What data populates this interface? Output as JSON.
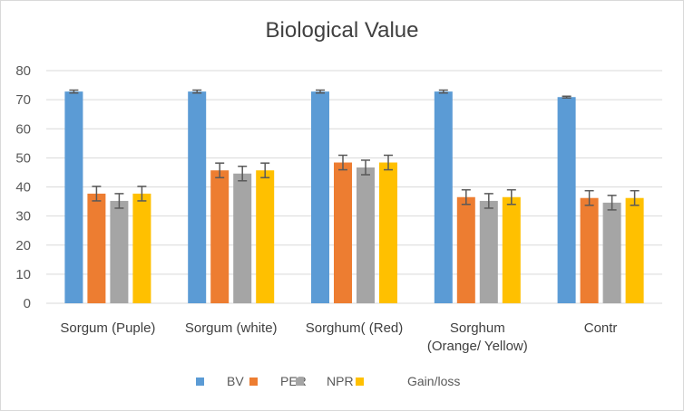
{
  "chart_data": {
    "type": "bar",
    "title": "Biological Value",
    "xlabel": "",
    "ylabel": "",
    "ylim": [
      0,
      80
    ],
    "yticks": [
      0,
      10,
      20,
      30,
      40,
      50,
      60,
      70,
      80
    ],
    "grid": true,
    "legend_position": "bottom",
    "categories": [
      [
        "Sorgum (Puple)"
      ],
      [
        "Sorgum (white)"
      ],
      [
        "Sorghum( (Red)"
      ],
      [
        "Sorghum",
        "(Orange/ Yellow)"
      ],
      [
        "Contr"
      ]
    ],
    "series": [
      {
        "name": "BV",
        "color": "#5b9bd5",
        "values": [
          72.8,
          72.8,
          72.8,
          72.8,
          70.9
        ],
        "errors": [
          0.5,
          0.5,
          0.5,
          0.5,
          0.3
        ]
      },
      {
        "name": "PER",
        "color": "#ed7d31",
        "values": [
          37.7,
          45.7,
          48.4,
          36.5,
          36.2
        ],
        "errors": [
          2.5,
          2.5,
          2.5,
          2.5,
          2.5
        ]
      },
      {
        "name": "NPR",
        "color": "#a5a5a5",
        "values": [
          35.2,
          44.6,
          46.7,
          35.2,
          34.6
        ],
        "errors": [
          2.5,
          2.5,
          2.5,
          2.5,
          2.5
        ]
      },
      {
        "name": "Gain/loss",
        "color": "#ffc000",
        "values": [
          37.7,
          45.7,
          48.4,
          36.5,
          36.2
        ],
        "errors": [
          2.5,
          2.5,
          2.5,
          2.5,
          2.5
        ]
      }
    ]
  }
}
